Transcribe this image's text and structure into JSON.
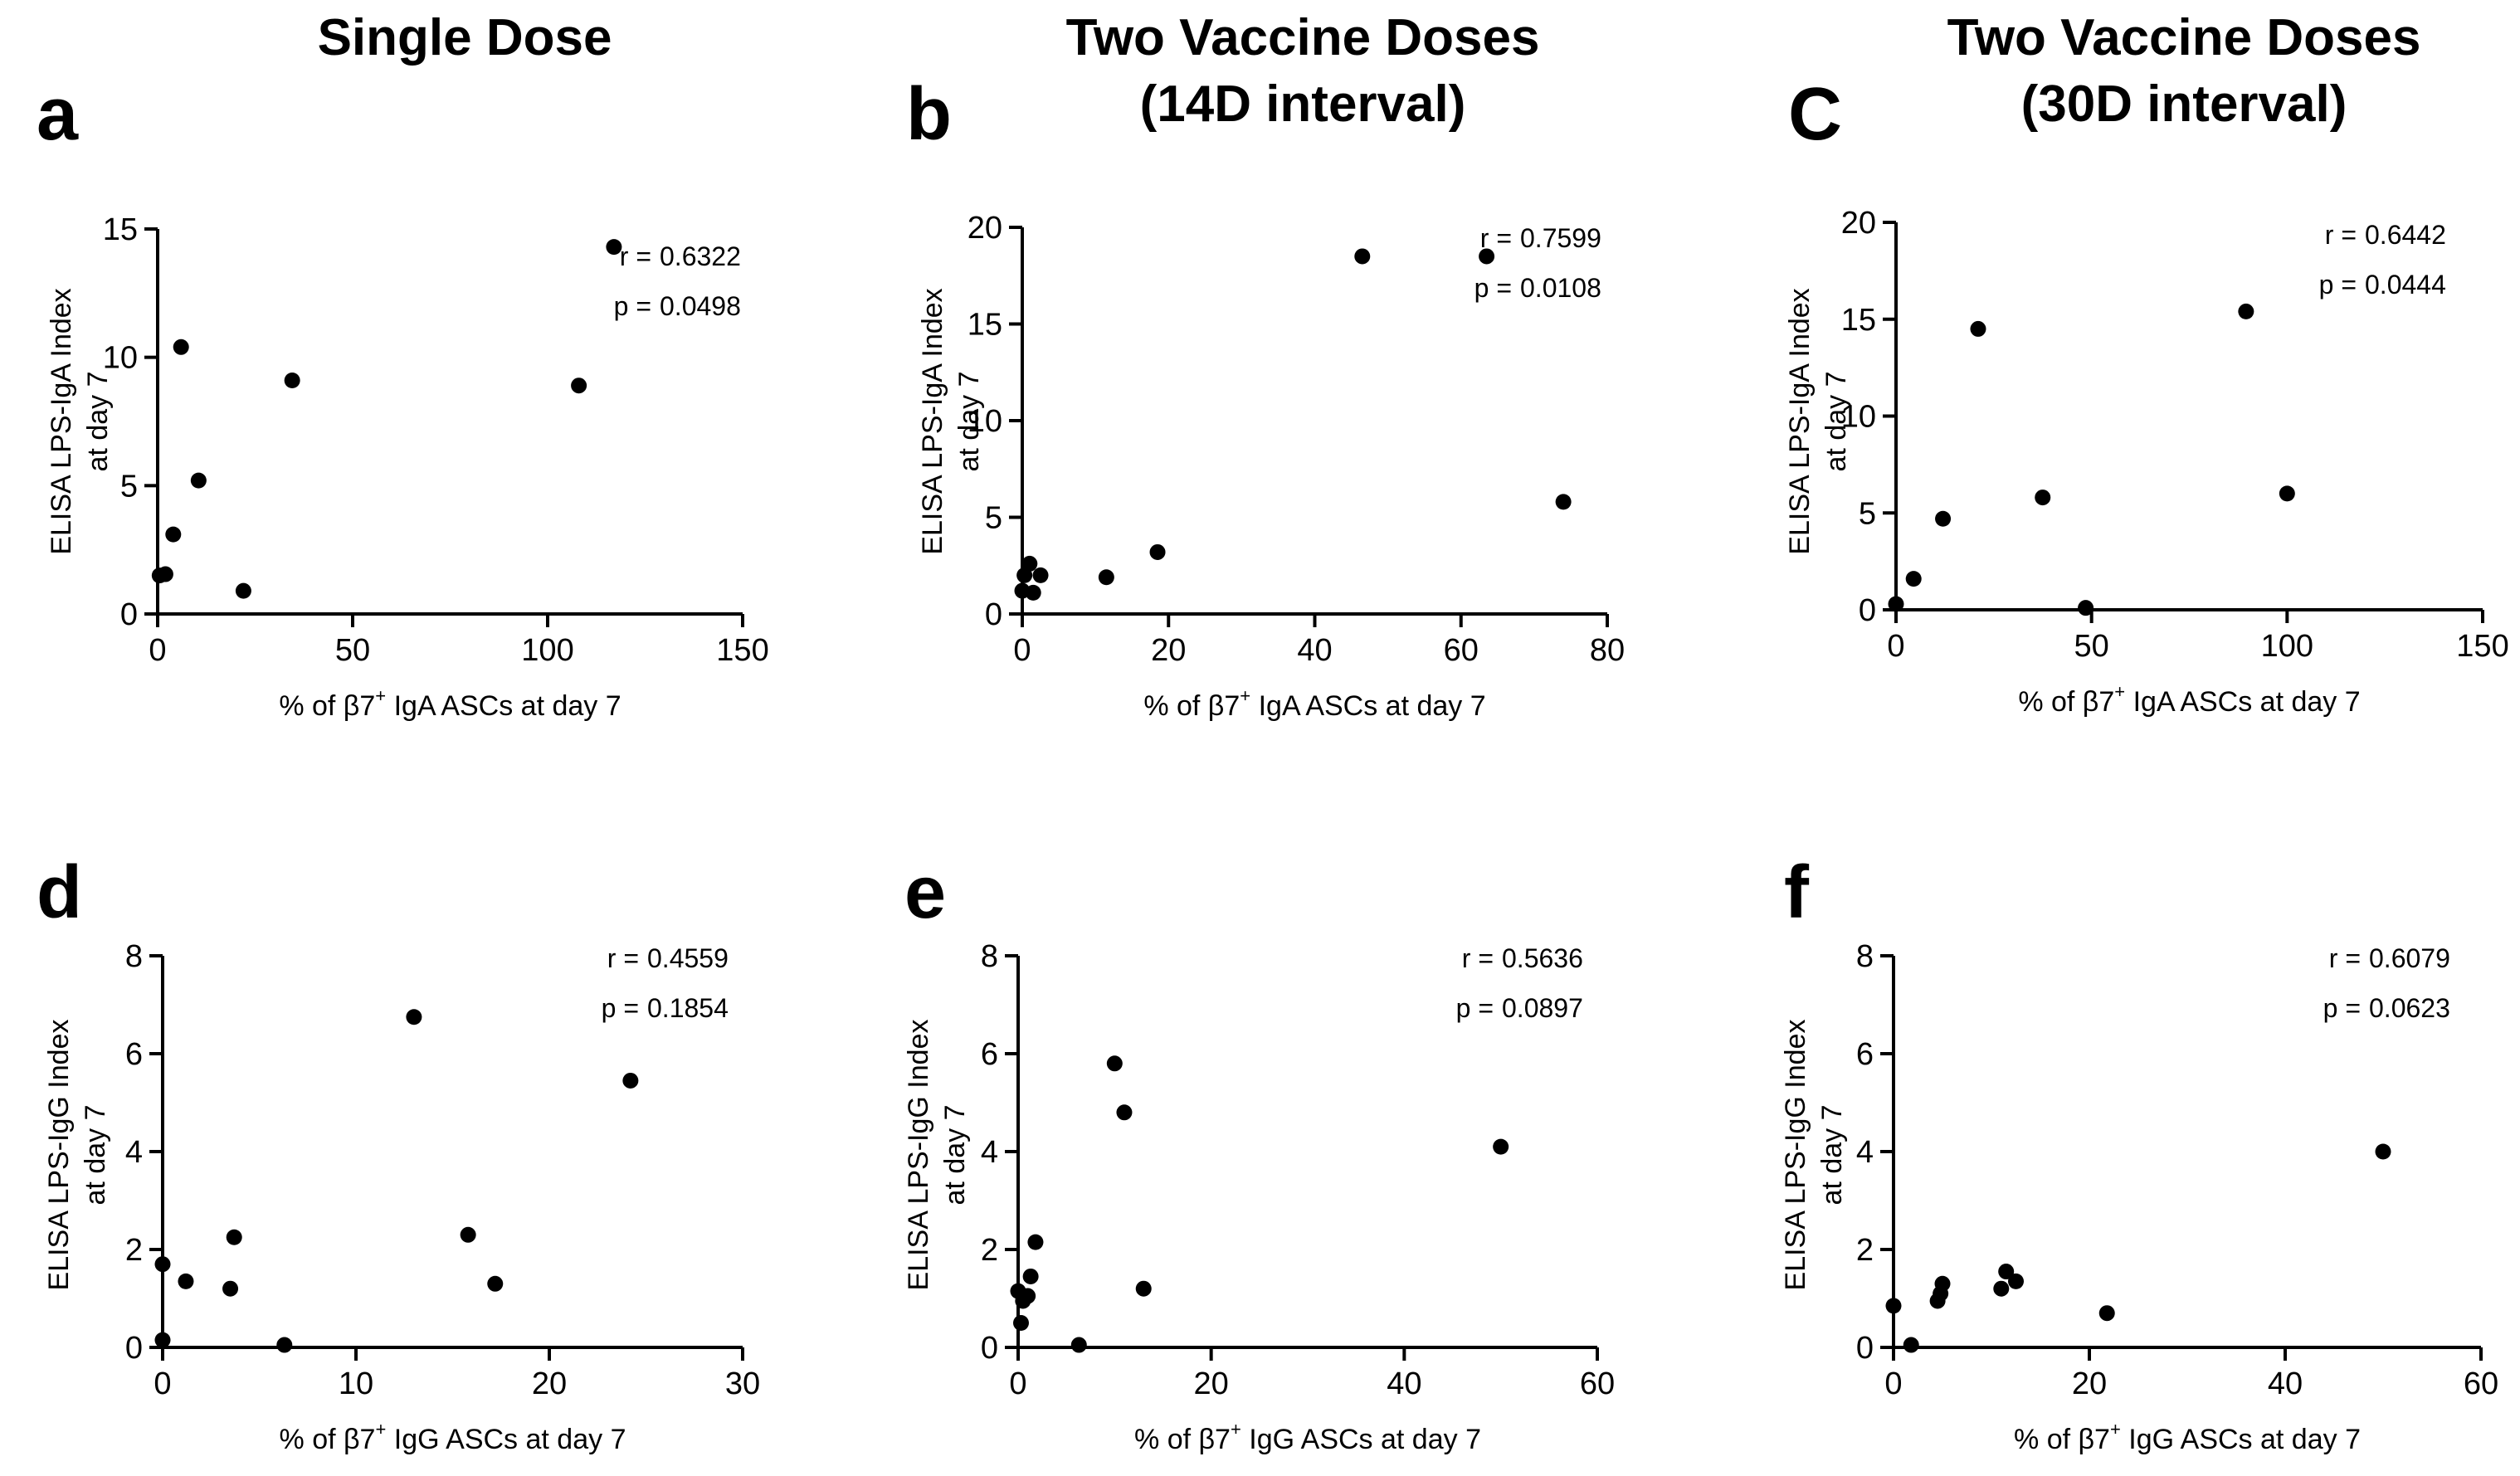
{
  "figure": {
    "column_titles": [
      [
        "Single Dose"
      ],
      [
        "Two Vaccine Doses",
        "(14D interval)"
      ],
      [
        "Two Vaccine Doses",
        "(30D interval)"
      ]
    ]
  },
  "chart_data": [
    {
      "type": "scatter",
      "panel": "a",
      "title": "",
      "xlabel": "% of β7+ IgA ASCs at day 7",
      "ylabel_lines": [
        "ELISA LPS-IgA Index",
        "at day 7"
      ],
      "xlim": [
        0,
        150
      ],
      "ylim": [
        0,
        15
      ],
      "xticks": [
        0,
        50,
        100,
        150
      ],
      "yticks": [
        0,
        5,
        10,
        15
      ],
      "points": [
        [
          0.5,
          1.5
        ],
        [
          2,
          1.55
        ],
        [
          4,
          3.1
        ],
        [
          6,
          10.4
        ],
        [
          10.5,
          5.2
        ],
        [
          22,
          0.9
        ],
        [
          34.5,
          9.1
        ],
        [
          108,
          8.9
        ],
        [
          117,
          14.3
        ]
      ],
      "stats": {
        "r_label": "r =",
        "r_value": "0.6322",
        "p_label": "p =",
        "p_value": "0.0498"
      }
    },
    {
      "type": "scatter",
      "panel": "b",
      "title": "",
      "xlabel": "% of β7+ IgA ASCs at day 7",
      "ylabel_lines": [
        "ELISA LPS-IgA Index",
        "at day 7"
      ],
      "xlim": [
        0,
        80
      ],
      "ylim": [
        0,
        20
      ],
      "xticks": [
        0,
        20,
        40,
        60,
        80
      ],
      "yticks": [
        0,
        5,
        10,
        15,
        20
      ],
      "points": [
        [
          0,
          1.2
        ],
        [
          0.3,
          2.0
        ],
        [
          1.0,
          2.6
        ],
        [
          1.5,
          1.1
        ],
        [
          2.5,
          2.0
        ],
        [
          11.5,
          1.9
        ],
        [
          18.5,
          3.2
        ],
        [
          46.5,
          18.5
        ],
        [
          63.5,
          18.5
        ],
        [
          74,
          5.8
        ]
      ],
      "stats": {
        "r_label": "r =",
        "r_value": "0.7599",
        "p_label": "p =",
        "p_value": "0.0108"
      }
    },
    {
      "type": "scatter",
      "panel": "C",
      "title": "",
      "xlabel": "% of β7+ IgA ASCs at day 7",
      "ylabel_lines": [
        "ELISA LPS-IgA Index",
        "at day 7"
      ],
      "xlim": [
        0,
        150
      ],
      "ylim": [
        0,
        20
      ],
      "xticks": [
        0,
        50,
        100,
        150
      ],
      "yticks": [
        0,
        5,
        10,
        15,
        20
      ],
      "points": [
        [
          0,
          0.3
        ],
        [
          4.5,
          1.6
        ],
        [
          12,
          4.7
        ],
        [
          21,
          14.5
        ],
        [
          37.5,
          5.8
        ],
        [
          48.5,
          0.1
        ],
        [
          89.5,
          15.4
        ],
        [
          100,
          6.0
        ]
      ],
      "stats": {
        "r_label": "r =",
        "r_value": "0.6442",
        "p_label": "p =",
        "p_value": "0.0444"
      }
    },
    {
      "type": "scatter",
      "panel": "d",
      "title": "",
      "xlabel": "% of β7+ IgG ASCs at day 7",
      "ylabel_lines": [
        "ELISA LPS-IgG Index",
        "at day 7"
      ],
      "xlim": [
        0,
        30
      ],
      "ylim": [
        0,
        8
      ],
      "xticks": [
        0,
        10,
        20,
        30
      ],
      "yticks": [
        0,
        2,
        4,
        6,
        8
      ],
      "points": [
        [
          0,
          1.7
        ],
        [
          0,
          0.15
        ],
        [
          1.2,
          1.35
        ],
        [
          3.5,
          1.2
        ],
        [
          3.7,
          2.25
        ],
        [
          6.3,
          0.05
        ],
        [
          13,
          6.75
        ],
        [
          15.8,
          2.3
        ],
        [
          17.2,
          1.3
        ],
        [
          24.2,
          5.45
        ]
      ],
      "stats": {
        "r_label": "r =",
        "r_value": "0.4559",
        "p_label": "p =",
        "p_value": "0.1854"
      }
    },
    {
      "type": "scatter",
      "panel": "e",
      "title": "",
      "xlabel": "% of β7+ IgG ASCs at day 7",
      "ylabel_lines": [
        "ELISA LPS-IgG Index",
        "at day 7"
      ],
      "xlim": [
        0,
        60
      ],
      "ylim": [
        0,
        8
      ],
      "xticks": [
        0,
        20,
        40,
        60
      ],
      "yticks": [
        0,
        2,
        4,
        6,
        8
      ],
      "points": [
        [
          0,
          1.15
        ],
        [
          0.3,
          0.5
        ],
        [
          0.5,
          0.95
        ],
        [
          1,
          1.05
        ],
        [
          1.3,
          1.45
        ],
        [
          1.8,
          2.15
        ],
        [
          6.3,
          0.05
        ],
        [
          10,
          5.8
        ],
        [
          11,
          4.8
        ],
        [
          13,
          1.2
        ],
        [
          50,
          4.1
        ]
      ],
      "stats": {
        "r_label": "r =",
        "r_value": "0.5636",
        "p_label": "p =",
        "p_value": "0.0897"
      }
    },
    {
      "type": "scatter",
      "panel": "f",
      "title": "",
      "xlabel": "% of β7+ IgG ASCs at day 7",
      "ylabel_lines": [
        "ELISA LPS-IgG Index",
        "at day 7"
      ],
      "xlim": [
        0,
        60
      ],
      "ylim": [
        0,
        8
      ],
      "xticks": [
        0,
        20,
        40,
        60
      ],
      "yticks": [
        0,
        2,
        4,
        6,
        8
      ],
      "points": [
        [
          0,
          0.85
        ],
        [
          1.8,
          0.05
        ],
        [
          4.5,
          0.95
        ],
        [
          4.8,
          1.1
        ],
        [
          5,
          1.3
        ],
        [
          11,
          1.2
        ],
        [
          11.5,
          1.55
        ],
        [
          12.5,
          1.35
        ],
        [
          21.8,
          0.7
        ],
        [
          50,
          4.0
        ]
      ],
      "stats": {
        "r_label": "r =",
        "r_value": "0.6079",
        "p_label": "p =",
        "p_value": "0.0623"
      }
    }
  ]
}
